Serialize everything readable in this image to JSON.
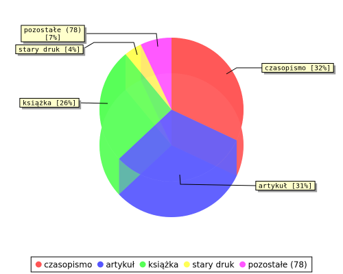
{
  "chart_data": {
    "type": "pie3d",
    "categories": [
      "czasopismo",
      "artykuł",
      "książka",
      "stary druk",
      "pozostałe (78)"
    ],
    "values": [
      32,
      31,
      26,
      4,
      7
    ],
    "value_labels": [
      "czasopismo [32%]",
      "artykuł [31%]",
      "książka [26%]",
      "stary druk [4%]",
      "pozostałe (78)\n[7%]"
    ],
    "colors": [
      "#ff5555",
      "#5555ff",
      "#55ff55",
      "#ffff55",
      "#ff55ff"
    ],
    "legend": "bottom"
  }
}
